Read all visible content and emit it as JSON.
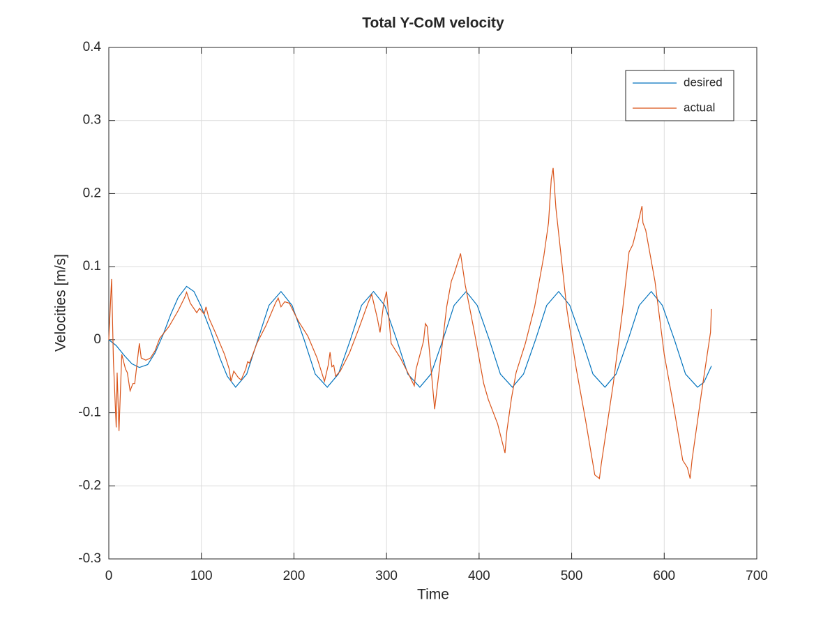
{
  "chart_data": {
    "type": "line",
    "title": "Total Y-CoM velocity",
    "x_label": "Time",
    "y_label": "Velocities [m/s]",
    "xlim": [
      0,
      700
    ],
    "xticks": [
      0,
      100,
      200,
      300,
      400,
      500,
      600,
      700
    ],
    "ylim": [
      -0.3,
      0.4
    ],
    "yticks": [
      -0.3,
      -0.2,
      -0.1,
      0,
      0.1,
      0.2,
      0.3,
      0.4
    ],
    "grid": true,
    "legend": "northeast",
    "series": [
      {
        "name": "desired",
        "color": "#0072BD",
        "x": [
          0,
          8,
          17,
          25,
          33,
          42,
          50,
          59,
          67,
          75,
          84,
          92,
          100,
          110,
          120,
          128,
          137,
          149,
          161,
          173,
          186,
          198,
          211,
          223,
          236,
          248,
          261,
          273,
          286,
          298,
          311,
          323,
          336,
          348,
          361,
          373,
          386,
          398,
          411,
          423,
          436,
          448,
          461,
          473,
          486,
          498,
          511,
          523,
          536,
          548,
          561,
          573,
          586,
          598,
          611,
          623,
          636,
          643,
          651
        ],
        "values": [
          0,
          -0.008,
          -0.022,
          -0.033,
          -0.038,
          -0.034,
          -0.018,
          0.008,
          0.035,
          0.058,
          0.073,
          0.066,
          0.045,
          0.012,
          -0.025,
          -0.05,
          -0.065,
          -0.047,
          0,
          0.047,
          0.066,
          0.047,
          0,
          -0.047,
          -0.065,
          -0.047,
          0,
          0.047,
          0.066,
          0.047,
          0,
          -0.047,
          -0.065,
          -0.047,
          0,
          0.047,
          0.066,
          0.047,
          0,
          -0.047,
          -0.065,
          -0.047,
          0,
          0.047,
          0.066,
          0.047,
          0,
          -0.047,
          -0.065,
          -0.047,
          0,
          0.047,
          0.066,
          0.047,
          0,
          -0.047,
          -0.065,
          -0.058,
          -0.036
        ]
      },
      {
        "name": "actual",
        "color": "#D95319",
        "x": [
          0,
          3,
          5,
          8,
          9,
          11,
          14,
          18,
          20,
          23,
          26,
          28,
          33,
          35,
          40,
          45,
          50,
          55,
          65,
          75,
          82,
          84,
          88,
          95,
          98,
          103,
          105,
          108,
          115,
          125,
          130,
          132,
          135,
          140,
          143,
          148,
          150,
          152,
          160,
          170,
          180,
          183,
          186,
          190,
          195,
          205,
          215,
          225,
          230,
          233,
          237,
          239,
          241,
          243,
          245,
          250,
          260,
          270,
          280,
          284,
          290,
          293,
          297,
          300,
          305,
          315,
          325,
          330,
          332,
          340,
          342,
          344,
          352,
          365,
          370,
          373,
          378,
          380,
          385,
          395,
          405,
          410,
          420,
          425,
          428,
          430,
          435,
          440,
          450,
          460,
          470,
          475,
          478,
          480,
          483,
          495,
          505,
          515,
          525,
          530,
          532,
          545,
          555,
          562,
          566,
          570,
          576,
          577,
          580,
          590,
          600,
          610,
          620,
          625,
          628,
          630,
          640,
          650,
          651
        ],
        "values": [
          0,
          0.083,
          -0.03,
          -0.12,
          -0.045,
          -0.125,
          -0.02,
          -0.04,
          -0.045,
          -0.07,
          -0.06,
          -0.06,
          -0.005,
          -0.025,
          -0.028,
          -0.025,
          -0.015,
          0.002,
          0.018,
          0.04,
          0.058,
          0.065,
          0.05,
          0.037,
          0.043,
          0.035,
          0.045,
          0.03,
          0.01,
          -0.02,
          -0.04,
          -0.057,
          -0.043,
          -0.052,
          -0.055,
          -0.04,
          -0.03,
          -0.032,
          -0.005,
          0.02,
          0.05,
          0.057,
          0.045,
          0.052,
          0.05,
          0.025,
          0.005,
          -0.025,
          -0.045,
          -0.057,
          -0.035,
          -0.017,
          -0.037,
          -0.035,
          -0.05,
          -0.043,
          -0.018,
          0.015,
          0.05,
          0.062,
          0.03,
          0.01,
          0.05,
          0.066,
          -0.005,
          -0.025,
          -0.05,
          -0.063,
          -0.04,
          -0.002,
          0.022,
          0.018,
          -0.095,
          0.045,
          0.08,
          0.09,
          0.11,
          0.118,
          0.075,
          0.01,
          -0.06,
          -0.082,
          -0.115,
          -0.14,
          -0.155,
          -0.125,
          -0.08,
          -0.045,
          -0.005,
          0.045,
          0.115,
          0.16,
          0.22,
          0.235,
          0.18,
          0.04,
          -0.04,
          -0.11,
          -0.185,
          -0.19,
          -0.17,
          -0.06,
          0.04,
          0.12,
          0.13,
          0.15,
          0.183,
          0.16,
          0.15,
          0.08,
          -0.02,
          -0.09,
          -0.165,
          -0.175,
          -0.19,
          -0.165,
          -0.075,
          0.01,
          0.042
        ]
      }
    ]
  }
}
